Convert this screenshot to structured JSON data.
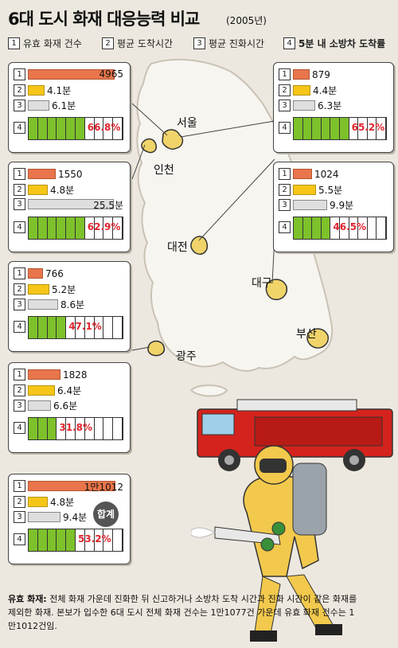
{
  "title": "6대 도시 화재 대응능력 비교",
  "subtitle": "(2005년)",
  "legend": [
    {
      "num": "1",
      "label": "유효 화재 건수"
    },
    {
      "num": "2",
      "label": "평균 도착시간"
    },
    {
      "num": "3",
      "label": "평균 진화시간"
    },
    {
      "num": "4",
      "label": "5분 내 소방차 도착률"
    }
  ],
  "cities": [
    "서울",
    "인천",
    "대전",
    "대구",
    "광주",
    "부산"
  ],
  "total_badge": "합계",
  "footnote": {
    "title": "유효 화재:",
    "text": "전체 화재 가운데 진화한 뒤 신고하거나 소방차 도착 시간과 진화 시간이 같은 화재를 제외한 화재. 본보가 입수한 6대 도시 전체 화재 건수는 1만1077건 가운데 유효 화재 건수는 1만1012건임."
  },
  "colors": {
    "fires": "#e8754b",
    "arrival": "#f5c518",
    "suppression": "#dedede",
    "rate": "#7dc12b",
    "rate_text": "#e0262f"
  },
  "chart_data": {
    "type": "bar",
    "title": "6대 도시 화재 대응능력 비교",
    "subtitle": "(2005년)",
    "categories": [
      "서울",
      "대전",
      "인천",
      "광주",
      "대구",
      "부산",
      "합계"
    ],
    "series": [
      {
        "name": "유효 화재 건수",
        "values": [
          4965,
          879,
          1550,
          766,
          1024,
          1828,
          11012
        ],
        "labels": [
          "4965",
          "879",
          "1550",
          "766",
          "1024",
          "1828",
          "1만1012"
        ]
      },
      {
        "name": "평균 도착시간",
        "values": [
          4.1,
          4.4,
          4.8,
          5.2,
          5.5,
          6.4,
          4.8
        ],
        "labels": [
          "4.1분",
          "4.4분",
          "4.8분",
          "5.2분",
          "5.5분",
          "6.4분",
          "4.8분"
        ]
      },
      {
        "name": "평균 진화시간",
        "values": [
          6.1,
          6.3,
          25.5,
          8.6,
          9.9,
          6.6,
          9.4
        ],
        "labels": [
          "6.1분",
          "6.3분",
          "25.5분",
          "8.6분",
          "9.9분",
          "6.6분",
          "9.4분"
        ]
      },
      {
        "name": "5분 내 소방차 도착률",
        "values": [
          66.8,
          65.2,
          62.9,
          47.1,
          46.5,
          31.8,
          53.2
        ],
        "labels": [
          "66.8%",
          "65.2%",
          "62.9%",
          "47.1%",
          "46.5%",
          "31.8%",
          "53.2%"
        ]
      }
    ]
  }
}
